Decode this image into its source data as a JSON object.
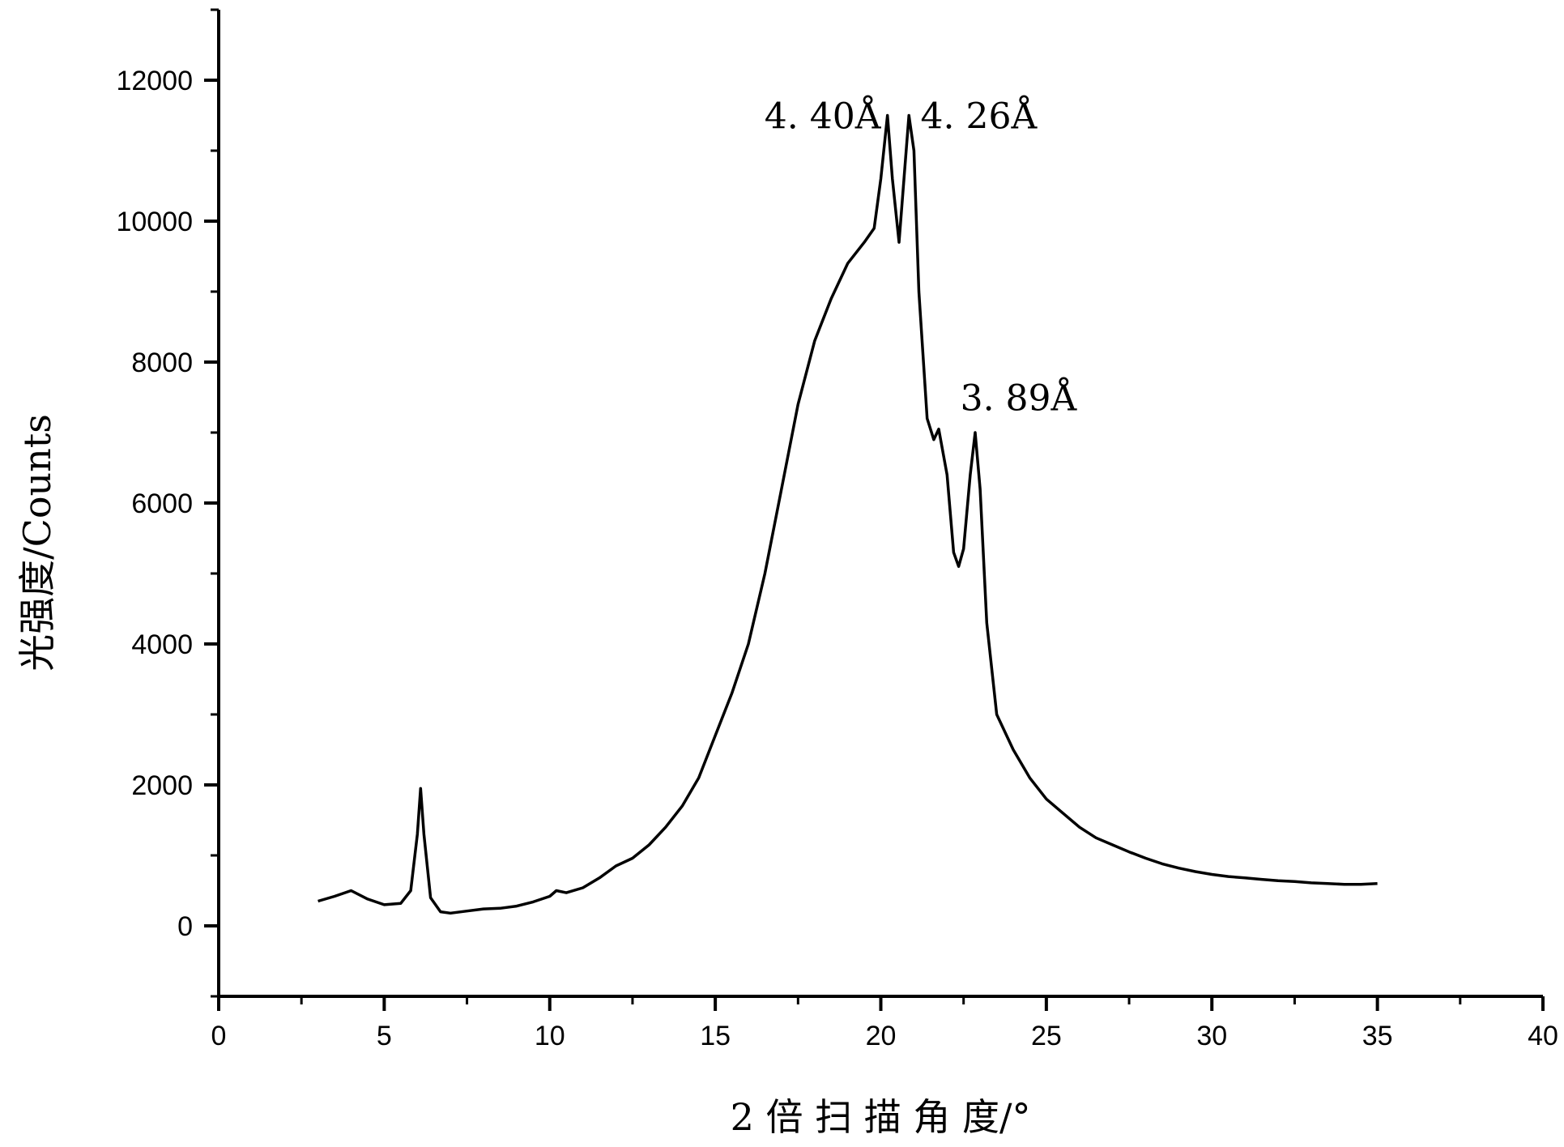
{
  "chart_data": {
    "type": "line",
    "title": "",
    "xlabel": "2 倍 扫 描 角 度/°",
    "ylabel": "光强度/Counts",
    "xlim": [
      0,
      40
    ],
    "ylim": [
      -1000,
      13000
    ],
    "x_ticks": [
      0,
      5,
      10,
      15,
      20,
      25,
      30,
      35,
      40
    ],
    "y_ticks": [
      0,
      2000,
      4000,
      6000,
      8000,
      10000,
      12000
    ],
    "x_tick_labels": [
      "0",
      "5",
      "10",
      "15",
      "20",
      "25",
      "30",
      "35",
      "40"
    ],
    "y_tick_labels": [
      "0",
      "2000",
      "4000",
      "6000",
      "8000",
      "10000",
      "12000"
    ],
    "grid": false,
    "legend": "none",
    "line_color": "#000000",
    "series": [
      {
        "x": [
          3.0,
          3.5,
          4.0,
          4.5,
          5.0,
          5.5,
          5.8,
          6.0,
          6.1,
          6.2,
          6.4,
          6.7,
          7.0,
          7.5,
          8.0,
          8.5,
          9.0,
          9.5,
          10.0,
          10.2,
          10.5,
          11.0,
          11.5,
          12.0,
          12.5,
          13.0,
          13.5,
          14.0,
          14.5,
          15.0,
          15.5,
          16.0,
          16.5,
          17.0,
          17.5,
          18.0,
          18.5,
          19.0,
          19.5,
          19.8,
          20.0,
          20.2,
          20.35,
          20.55,
          20.7,
          20.85,
          21.0,
          21.15,
          21.4,
          21.6,
          21.75,
          22.0,
          22.2,
          22.35,
          22.5,
          22.7,
          22.85,
          23.0,
          23.2,
          23.5,
          24.0,
          24.5,
          25.0,
          25.5,
          26.0,
          26.5,
          27.0,
          27.5,
          28.0,
          28.5,
          29.0,
          29.5,
          30.0,
          30.5,
          31.0,
          31.5,
          32.0,
          32.5,
          33.0,
          33.5,
          34.0,
          34.5,
          35.0
        ],
        "y": [
          350,
          420,
          500,
          380,
          300,
          320,
          500,
          1300,
          1950,
          1300,
          400,
          200,
          180,
          210,
          240,
          250,
          280,
          340,
          420,
          500,
          470,
          540,
          680,
          850,
          960,
          1150,
          1400,
          1700,
          2100,
          2700,
          3300,
          4000,
          5000,
          6200,
          7400,
          8300,
          8900,
          9400,
          9700,
          9900,
          10600,
          11500,
          10600,
          9700,
          10600,
          11500,
          11000,
          9000,
          7200,
          6900,
          7050,
          6400,
          5300,
          5100,
          5350,
          6400,
          7000,
          6200,
          4300,
          3000,
          2500,
          2100,
          1800,
          1600,
          1400,
          1250,
          1150,
          1050,
          960,
          880,
          820,
          770,
          730,
          700,
          680,
          660,
          640,
          630,
          610,
          600,
          590,
          590,
          600
        ]
      }
    ],
    "annotations": [
      {
        "text": "4. 40Å",
        "x": 20.0,
        "y": 11500,
        "anchor": "end"
      },
      {
        "text": "4. 26Å",
        "x": 21.2,
        "y": 11500,
        "anchor": "start"
      },
      {
        "text": "3. 89Å",
        "x": 22.4,
        "y": 7500,
        "anchor": "start"
      }
    ]
  }
}
